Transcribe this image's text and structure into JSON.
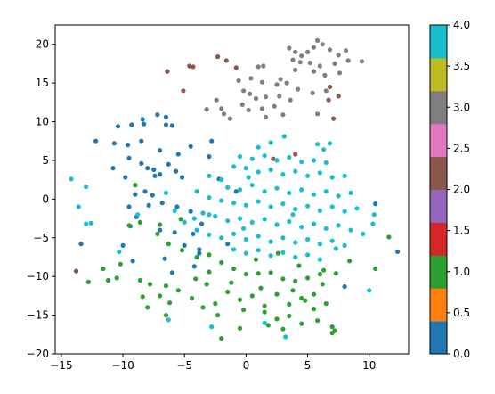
{
  "chart_data": {
    "type": "scatter",
    "title": "",
    "xlabel": "",
    "ylabel": "",
    "xlim": [
      -15.5,
      13.2
    ],
    "ylim": [
      -20,
      22.5
    ],
    "xticks": [
      -15,
      -10,
      -5,
      0,
      5,
      10
    ],
    "yticks": [
      -20,
      -15,
      -10,
      -5,
      0,
      5,
      10,
      15,
      20
    ],
    "xtick_labels": [
      "−15",
      "−10",
      "−5",
      "0",
      "5",
      "10"
    ],
    "ytick_labels": [
      "−20",
      "−15",
      "−10",
      "−5",
      "0",
      "5",
      "10",
      "15",
      "20"
    ],
    "grid": false,
    "colorbar": {
      "cmap": "tab10",
      "range": [
        0,
        4
      ],
      "ticks": [
        0,
        0.5,
        1,
        1.5,
        2,
        2.5,
        3,
        3.5,
        4
      ],
      "tick_labels": [
        "0.0",
        "0.5",
        "1.0",
        "1.5",
        "2.0",
        "2.5",
        "3.0",
        "3.5",
        "4.0"
      ],
      "colors": [
        "#1f77b4",
        "#ff7f0e",
        "#2ca02c",
        "#d62728",
        "#9467bd",
        "#8c564b",
        "#e377c2",
        "#7f7f7f",
        "#bcbd22",
        "#17becf"
      ]
    },
    "class_colors": {
      "0": "#1f77b4",
      "1": "#2ca02c",
      "2": "#8c564b",
      "3": "#7f7f7f",
      "4": "#17becf"
    },
    "series": [
      {
        "class": 0,
        "points": [
          [
            -10.4,
            9.4
          ],
          [
            -9.3,
            9.6
          ],
          [
            -8.4,
            10.3
          ],
          [
            -7.2,
            10.9
          ],
          [
            -6.5,
            10.6
          ],
          [
            -8.3,
            9.7
          ],
          [
            -12.2,
            7.5
          ],
          [
            -10.7,
            7.2
          ],
          [
            -9.6,
            7.0
          ],
          [
            -8.5,
            7.5
          ],
          [
            -7.0,
            6.3
          ],
          [
            -5.5,
            5.8
          ],
          [
            -4.5,
            6.8
          ],
          [
            -2.8,
            7.5
          ],
          [
            -6.5,
            9.6
          ],
          [
            -6.0,
            9.5
          ],
          [
            -9.5,
            5.3
          ],
          [
            -8.5,
            4.6
          ],
          [
            -8.0,
            4.0
          ],
          [
            -7.5,
            3.8
          ],
          [
            -7.0,
            3.2
          ],
          [
            -6.3,
            4.5
          ],
          [
            -5.7,
            3.6
          ],
          [
            -5.2,
            2.8
          ],
          [
            -10.8,
            4.0
          ],
          [
            -9.8,
            2.8
          ],
          [
            -9.0,
            1.8
          ],
          [
            -8.2,
            1.0
          ],
          [
            -7.6,
            0.5
          ],
          [
            -7.4,
            3.0
          ],
          [
            -9.0,
            0.6
          ],
          [
            -7.9,
            -0.8
          ],
          [
            -6.8,
            -0.5
          ],
          [
            -5.6,
            -1.0
          ],
          [
            -4.5,
            -1.6
          ],
          [
            -9.5,
            -1.0
          ],
          [
            -8.9,
            -2.3
          ],
          [
            -9.4,
            -3.5
          ],
          [
            -7.0,
            -4.0
          ],
          [
            -5.8,
            -4.3
          ],
          [
            -4.3,
            -4.5
          ],
          [
            -3.6,
            -3.2
          ],
          [
            -10.0,
            -6.0
          ],
          [
            -9.2,
            -8.0
          ],
          [
            -6.0,
            -9.5
          ],
          [
            -4.2,
            -8.7
          ],
          [
            -3.8,
            -7.0
          ],
          [
            -1.5,
            -5.8
          ],
          [
            -5.0,
            -6.0
          ],
          [
            -6.6,
            -7.7
          ],
          [
            -2.2,
            2.6
          ],
          [
            -3.0,
            5.5
          ],
          [
            -0.8,
            1.0
          ],
          [
            -13.4,
            -5.8
          ],
          [
            10.5,
            -0.6
          ],
          [
            12.3,
            -6.8
          ],
          [
            8.0,
            -11.3
          ],
          [
            -3.8,
            -6.5
          ]
        ]
      },
      {
        "class": 1,
        "points": [
          [
            -9.5,
            -3.4
          ],
          [
            -8.6,
            -3.0
          ],
          [
            -7.2,
            -4.5
          ],
          [
            -6.3,
            -5.8
          ],
          [
            -5.2,
            -6.6
          ],
          [
            -4.0,
            -7.5
          ],
          [
            -3.0,
            -7.2
          ],
          [
            -2.0,
            -8.2
          ],
          [
            -1.0,
            -9.0
          ],
          [
            0.0,
            -9.7
          ],
          [
            1.0,
            -9.6
          ],
          [
            2.0,
            -9.5
          ],
          [
            3.0,
            -10.3
          ],
          [
            4.0,
            -10.6
          ],
          [
            5.0,
            -10.2
          ],
          [
            6.0,
            -9.7
          ],
          [
            -10.2,
            -8.4
          ],
          [
            -8.6,
            -10.5
          ],
          [
            -7.8,
            -11.0
          ],
          [
            -7.0,
            -12.5
          ],
          [
            -6.2,
            -13.4
          ],
          [
            -5.5,
            -11.8
          ],
          [
            -4.4,
            -12.8
          ],
          [
            -3.2,
            -11.0
          ],
          [
            -2.5,
            -13.5
          ],
          [
            -1.5,
            -12.0
          ],
          [
            -0.5,
            -13.0
          ],
          [
            0.5,
            -12.5
          ],
          [
            1.5,
            -13.8
          ],
          [
            2.5,
            -12.3
          ],
          [
            3.5,
            -13.6
          ],
          [
            4.5,
            -12.8
          ],
          [
            5.5,
            -14.2
          ],
          [
            6.5,
            -13.5
          ],
          [
            7.0,
            -16.5
          ],
          [
            7.2,
            -17.0
          ],
          [
            7.0,
            -17.3
          ],
          [
            -2.0,
            -18.0
          ],
          [
            -0.5,
            -16.7
          ],
          [
            1.5,
            -14.6
          ],
          [
            2.5,
            -15.5
          ],
          [
            3.5,
            -15.1
          ],
          [
            4.5,
            -16.1
          ],
          [
            5.8,
            -15.7
          ],
          [
            -8.0,
            -14.0
          ],
          [
            -6.5,
            -15.0
          ],
          [
            -11.6,
            -9.0
          ],
          [
            -11.2,
            -10.5
          ],
          [
            -10.5,
            -10.2
          ],
          [
            -12.8,
            -10.7
          ],
          [
            -8.4,
            -12.6
          ],
          [
            -6.5,
            -11.2
          ],
          [
            -4.1,
            -10.3
          ],
          [
            -1.2,
            -10.8
          ],
          [
            1.2,
            -11.5
          ],
          [
            3.8,
            -11.8
          ],
          [
            4.8,
            -13.1
          ],
          [
            6.2,
            -11.0
          ],
          [
            7.3,
            -9.6
          ],
          [
            8.4,
            -8.0
          ],
          [
            10.5,
            -9.0
          ],
          [
            11.6,
            -4.9
          ],
          [
            -7.0,
            -3.3
          ],
          [
            -5.3,
            -2.6
          ],
          [
            -9.0,
            1.8
          ],
          [
            -3.0,
            -9.4
          ],
          [
            0.8,
            -7.8
          ],
          [
            2.6,
            -7.0
          ],
          [
            4.3,
            -8.6
          ],
          [
            -2.3,
            -15.0
          ],
          [
            -0.2,
            -14.3
          ],
          [
            3.0,
            -16.8
          ],
          [
            5.5,
            -12.3
          ],
          [
            -3.5,
            -14.0
          ],
          [
            1.8,
            -16.3
          ],
          [
            6.3,
            -9.2
          ]
        ]
      },
      {
        "class": 2,
        "points": [
          [
            -6.4,
            16.5
          ],
          [
            -4.6,
            17.2
          ],
          [
            -4.3,
            17.1
          ],
          [
            -2.3,
            18.4
          ],
          [
            -1.6,
            17.9
          ],
          [
            -0.8,
            17.0
          ],
          [
            -5.1,
            14.0
          ],
          [
            6.8,
            14.5
          ],
          [
            7.5,
            13.3
          ],
          [
            7.1,
            10.4
          ],
          [
            -13.8,
            -9.3
          ],
          [
            6.7,
            12.8
          ],
          [
            2.2,
            5.2
          ],
          [
            4.0,
            5.8
          ]
        ]
      },
      {
        "class": 3,
        "points": [
          [
            3.5,
            19.5
          ],
          [
            4.0,
            19.0
          ],
          [
            4.5,
            18.5
          ],
          [
            5.0,
            19.0
          ],
          [
            5.5,
            19.6
          ],
          [
            5.8,
            20.5
          ],
          [
            6.2,
            20.0
          ],
          [
            6.8,
            19.3
          ],
          [
            7.5,
            18.6
          ],
          [
            8.1,
            19.2
          ],
          [
            3.8,
            18.0
          ],
          [
            4.4,
            17.7
          ],
          [
            5.2,
            17.6
          ],
          [
            6.0,
            17.2
          ],
          [
            7.2,
            17.5
          ],
          [
            8.3,
            17.9
          ],
          [
            9.4,
            17.8
          ],
          [
            5.5,
            16.5
          ],
          [
            6.4,
            16.0
          ],
          [
            7.6,
            16.3
          ],
          [
            4.0,
            16.7
          ],
          [
            1.0,
            17.1
          ],
          [
            1.4,
            17.2
          ],
          [
            -0.6,
            15.3
          ],
          [
            0.4,
            15.6
          ],
          [
            1.3,
            15.1
          ],
          [
            2.5,
            14.8
          ],
          [
            3.3,
            15.0
          ],
          [
            4.2,
            14.2
          ],
          [
            5.4,
            13.7
          ],
          [
            6.5,
            14.0
          ],
          [
            -0.2,
            14.0
          ],
          [
            0.3,
            13.6
          ],
          [
            1.6,
            13.2
          ],
          [
            2.7,
            13.3
          ],
          [
            3.6,
            12.8
          ],
          [
            -2.4,
            12.8
          ],
          [
            -2.0,
            11.7
          ],
          [
            -3.2,
            11.6
          ],
          [
            -1.8,
            11.0
          ],
          [
            -0.3,
            12.2
          ],
          [
            0.2,
            11.5
          ],
          [
            1.3,
            11.7
          ],
          [
            2.3,
            12.0
          ],
          [
            -1.3,
            10.4
          ],
          [
            1.6,
            10.6
          ],
          [
            3.0,
            10.9
          ],
          [
            5.8,
            11.0
          ],
          [
            2.8,
            15.5
          ],
          [
            0.8,
            13.0
          ]
        ]
      },
      {
        "class": 4,
        "points": [
          [
            -14.2,
            2.6
          ],
          [
            -13.0,
            1.6
          ],
          [
            -13.6,
            -1.0
          ],
          [
            -13.0,
            -3.2
          ],
          [
            -12.6,
            -3.1
          ],
          [
            1.0,
            6.7
          ],
          [
            2.0,
            7.3
          ],
          [
            3.1,
            8.1
          ],
          [
            5.8,
            7.1
          ],
          [
            6.3,
            6.4
          ],
          [
            -0.5,
            5.5
          ],
          [
            0.5,
            5.2
          ],
          [
            1.5,
            5.6
          ],
          [
            2.5,
            5.0
          ],
          [
            3.5,
            5.4
          ],
          [
            4.5,
            4.8
          ],
          [
            5.5,
            5.0
          ],
          [
            6.5,
            4.7
          ],
          [
            -1.0,
            4.2
          ],
          [
            0.0,
            4.0
          ],
          [
            1.0,
            3.5
          ],
          [
            2.0,
            3.8
          ],
          [
            3.0,
            3.2
          ],
          [
            4.0,
            3.6
          ],
          [
            5.0,
            3.0
          ],
          [
            6.0,
            3.4
          ],
          [
            7.0,
            2.8
          ],
          [
            8.0,
            3.0
          ],
          [
            -3.0,
            3.0
          ],
          [
            -2.0,
            2.5
          ],
          [
            -1.5,
            1.5
          ],
          [
            -0.5,
            1.2
          ],
          [
            0.5,
            1.8
          ],
          [
            1.5,
            1.0
          ],
          [
            2.5,
            1.4
          ],
          [
            3.5,
            0.8
          ],
          [
            4.5,
            1.2
          ],
          [
            5.5,
            0.6
          ],
          [
            6.5,
            1.0
          ],
          [
            7.5,
            0.4
          ],
          [
            8.5,
            0.8
          ],
          [
            -4.0,
            1.0
          ],
          [
            -3.0,
            0.2
          ],
          [
            -2.0,
            -0.2
          ],
          [
            -1.0,
            -0.5
          ],
          [
            0.0,
            -0.8
          ],
          [
            1.0,
            -0.3
          ],
          [
            2.0,
            -1.0
          ],
          [
            3.0,
            -0.6
          ],
          [
            4.0,
            -1.3
          ],
          [
            5.0,
            -0.9
          ],
          [
            6.0,
            -1.5
          ],
          [
            7.0,
            -1.0
          ],
          [
            8.0,
            -1.6
          ],
          [
            9.0,
            -1.2
          ],
          [
            -3.5,
            -1.8
          ],
          [
            -2.5,
            -2.2
          ],
          [
            -1.5,
            -2.8
          ],
          [
            -0.5,
            -2.5
          ],
          [
            0.5,
            -3.0
          ],
          [
            1.5,
            -2.6
          ],
          [
            2.5,
            -3.3
          ],
          [
            3.5,
            -2.9
          ],
          [
            4.5,
            -3.6
          ],
          [
            5.5,
            -3.2
          ],
          [
            6.5,
            -3.8
          ],
          [
            7.5,
            -3.4
          ],
          [
            8.5,
            -4.0
          ],
          [
            9.5,
            -4.5
          ],
          [
            -5.0,
            -3.0
          ],
          [
            -4.0,
            -4.0
          ],
          [
            -3.0,
            -4.6
          ],
          [
            -2.0,
            -5.0
          ],
          [
            -1.0,
            -4.5
          ],
          [
            0.0,
            -5.2
          ],
          [
            1.0,
            -4.8
          ],
          [
            2.0,
            -5.5
          ],
          [
            3.0,
            -5.0
          ],
          [
            4.0,
            -5.6
          ],
          [
            5.0,
            -5.2
          ],
          [
            6.0,
            -5.8
          ],
          [
            7.0,
            -5.4
          ],
          [
            8.0,
            -6.0
          ],
          [
            -1.0,
            -6.5
          ],
          [
            0.0,
            -7.0
          ],
          [
            1.0,
            -6.6
          ],
          [
            2.0,
            -7.3
          ],
          [
            3.0,
            -6.9
          ],
          [
            4.0,
            -7.5
          ],
          [
            5.0,
            -7.2
          ],
          [
            6.0,
            -7.8
          ],
          [
            -3.0,
            -2.0
          ],
          [
            -6.5,
            0.8
          ],
          [
            -5.8,
            -1.5
          ],
          [
            -4.2,
            -2.5
          ],
          [
            -8.8,
            -2.0
          ],
          [
            -10.3,
            -6.8
          ],
          [
            -6.3,
            -15.6
          ],
          [
            -2.8,
            -16.5
          ],
          [
            1.5,
            -16.0
          ],
          [
            3.2,
            -17.8
          ],
          [
            10.3,
            -3.2
          ],
          [
            10.4,
            -2.0
          ],
          [
            10.0,
            -11.8
          ],
          [
            6.8,
            7.2
          ],
          [
            0.2,
            2.8
          ],
          [
            3.8,
            -2.0
          ],
          [
            -0.2,
            -3.8
          ],
          [
            7.3,
            -6.4
          ]
        ]
      }
    ]
  }
}
